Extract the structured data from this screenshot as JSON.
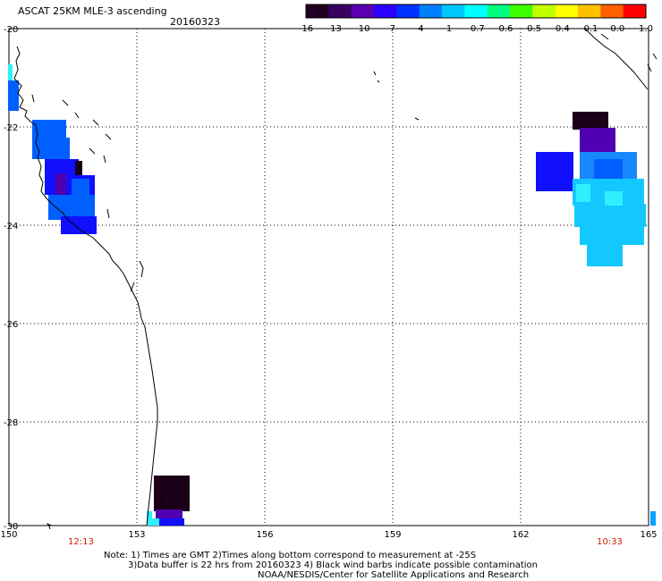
{
  "header": {
    "title": "ASCAT 25KM MLE-3 ascending",
    "date": "20160323"
  },
  "colorbar": {
    "labels": [
      "-16",
      "-13",
      "-10",
      "-7",
      "-4",
      "-1",
      "-0.7",
      "-0.6",
      "-0.5",
      "-0.4",
      "-0.1",
      "0.0",
      "1.0"
    ],
    "colors": [
      "#200020",
      "#3a0060",
      "#5a00b0",
      "#2a00ff",
      "#0030ff",
      "#0080ff",
      "#00c8ff",
      "#00ffff",
      "#00ff80",
      "#40ff00",
      "#c0ff00",
      "#ffff00",
      "#ffc000",
      "#ff6000",
      "#ff0000"
    ]
  },
  "axes": {
    "lon_labels": [
      "150",
      "153",
      "156",
      "159",
      "162",
      "165"
    ],
    "lat_labels": [
      "-20",
      "-22",
      "-24",
      "-26",
      "-28",
      "-30"
    ],
    "grid": "dotted"
  },
  "pass_times": [
    "12:13",
    "10:33"
  ],
  "notes": {
    "line1": "Note: 1) Times are GMT 2)Times along bottom correspond to measurement at -25S",
    "line2": "3)Data buffer is 22 hrs from 20160323 4) Black wind barbs indicate possible contamination",
    "line3": "NOAA/NESDIS/Center for Satellite Applications and Research"
  },
  "map_data": {
    "cell_colors": {
      "deep": "#1a0018",
      "violet": "#5000b0",
      "blue": "#1010ff",
      "mid": "#0060ff",
      "med": "#1888ff",
      "light": "#14c8ff",
      "cyan": "#2ef0ff",
      "sky": "#0aa0ff"
    }
  }
}
